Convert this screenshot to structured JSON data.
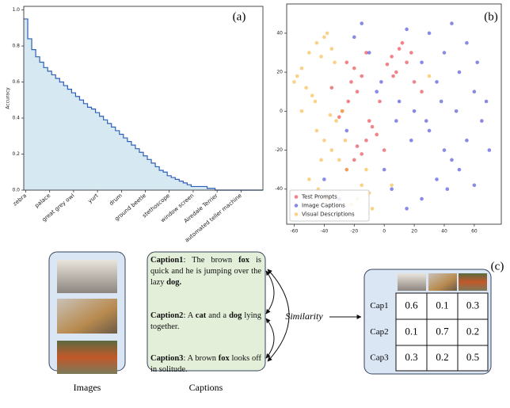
{
  "chart_data": [
    {
      "type": "step-area",
      "label": "(a)",
      "ylabel": "Accuracy",
      "color": "#2e5fb7",
      "fill": "#d6e9f2",
      "categories": [
        "zebra",
        null,
        null,
        null,
        null,
        null,
        "palace",
        null,
        null,
        null,
        null,
        null,
        "great grey owl",
        null,
        null,
        null,
        null,
        null,
        "yurt",
        null,
        null,
        null,
        null,
        null,
        "drum",
        null,
        null,
        null,
        null,
        null,
        "ground beetle",
        null,
        null,
        null,
        null,
        null,
        "stethoscope",
        null,
        null,
        null,
        null,
        null,
        "window screen",
        null,
        null,
        null,
        null,
        null,
        "Airedale Terrier",
        null,
        null,
        null,
        null,
        null,
        "automated teller machine",
        null,
        null,
        null,
        null,
        null
      ],
      "values": [
        0.95,
        0.84,
        0.78,
        0.74,
        0.71,
        0.68,
        0.66,
        0.64,
        0.62,
        0.6,
        0.58,
        0.56,
        0.54,
        0.52,
        0.5,
        0.48,
        0.46,
        0.45,
        0.43,
        0.41,
        0.39,
        0.37,
        0.35,
        0.33,
        0.31,
        0.29,
        0.27,
        0.25,
        0.23,
        0.21,
        0.19,
        0.17,
        0.15,
        0.13,
        0.11,
        0.1,
        0.08,
        0.07,
        0.06,
        0.05,
        0.04,
        0.03,
        0.02,
        0.02,
        0.02,
        0.02,
        0.01,
        0.01,
        0,
        0,
        0,
        0,
        0,
        0,
        0,
        0,
        0,
        0,
        0,
        0
      ],
      "ylim": [
        0,
        1.02
      ],
      "yticks": [
        {
          "value": 0,
          "label": "0.0"
        },
        0.2,
        0.4,
        0.6,
        0.8,
        {
          "value": 1,
          "label": "1.0"
        }
      ]
    },
    {
      "type": "scatter",
      "label": "(b)",
      "legend": "lower-left",
      "xlim": [
        -65,
        78
      ],
      "ylim": [
        -58,
        55
      ],
      "xticks": [
        -60,
        -40,
        -20,
        0,
        20,
        40,
        60
      ],
      "yticks": [
        -40,
        -20,
        0,
        20,
        40
      ],
      "series": [
        {
          "name": "Test Prompts",
          "color": "#e8303a",
          "x": [
            5,
            10,
            15,
            8,
            12,
            18,
            2,
            20,
            -20,
            -15,
            -25,
            -18,
            -22,
            -10,
            -5,
            -12,
            -8,
            -28,
            -24,
            -30,
            -20,
            -15,
            -25,
            -18,
            0,
            -3,
            25,
            -35,
            -12,
            6
          ],
          "y": [
            28,
            32,
            25,
            20,
            35,
            30,
            24,
            15,
            22,
            18,
            25,
            10,
            15,
            -5,
            -12,
            -15,
            -8,
            0,
            5,
            -3,
            -25,
            -22,
            -30,
            -18,
            -20,
            5,
            10,
            12,
            30,
            18
          ]
        },
        {
          "name": "Image Captions",
          "color": "#3b3bd6",
          "x": [
            30,
            40,
            50,
            60,
            65,
            55,
            45,
            35,
            25,
            15,
            5,
            0,
            -5,
            10,
            20,
            30,
            40,
            50,
            60,
            70,
            55,
            45,
            35,
            25,
            15,
            -10,
            -20,
            -30,
            -40,
            -25,
            62,
            48,
            38,
            28,
            18,
            8,
            -2,
            -15,
            42,
            68
          ],
          "y": [
            40,
            30,
            20,
            10,
            -5,
            -15,
            -25,
            -35,
            -45,
            -50,
            -40,
            -30,
            10,
            5,
            0,
            -10,
            -20,
            -30,
            -38,
            -20,
            35,
            45,
            15,
            25,
            42,
            30,
            38,
            -45,
            -35,
            -10,
            25,
            0,
            5,
            -5,
            -15,
            -5,
            15,
            45,
            -40,
            5
          ]
        },
        {
          "name": "Visual Descriptions",
          "color": "#f9b233",
          "x": [
            -45,
            -40,
            -35,
            -50,
            -42,
            -38,
            -55,
            -58,
            -52,
            -48,
            -45,
            -40,
            -35,
            -30,
            -25,
            -50,
            -44,
            -38,
            -32,
            -28,
            -15,
            -18,
            -10,
            -12,
            -22,
            -55,
            -46,
            -36,
            -26,
            -8,
            5,
            30,
            -60,
            -42,
            -33
          ],
          "y": [
            35,
            38,
            32,
            30,
            28,
            40,
            22,
            18,
            12,
            8,
            -10,
            -15,
            -20,
            -25,
            -30,
            -35,
            -40,
            -45,
            -5,
            0,
            -38,
            -45,
            -42,
            -30,
            -48,
            0,
            5,
            -2,
            -15,
            -50,
            -38,
            18,
            15,
            -25,
            25
          ]
        }
      ]
    }
  ],
  "figure": {
    "panel_label": "(c)",
    "images_label": "Images",
    "captions_label": "Captions",
    "similarity_label": "Similarity",
    "captions": [
      [
        {
          "b": "Caption1"
        },
        ": The brown ",
        {
          "b": "fox"
        },
        " is quick and he is jumping over the lazy ",
        {
          "b": "dog."
        }
      ],
      [
        {
          "b": "Caption2"
        },
        ": A ",
        {
          "b": "cat"
        },
        " and a ",
        {
          "b": "dog"
        },
        " lying together."
      ],
      [
        {
          "b": "Caption3"
        },
        ": A brown ",
        {
          "b": "fox"
        },
        " looks off in solitude."
      ]
    ],
    "table": {
      "rows": [
        [
          "Cap1",
          0.6,
          0.1,
          0.3
        ],
        [
          "Cap2",
          0.1,
          0.7,
          0.2
        ],
        [
          "Cap3",
          0.3,
          0.2,
          0.5
        ]
      ]
    }
  }
}
